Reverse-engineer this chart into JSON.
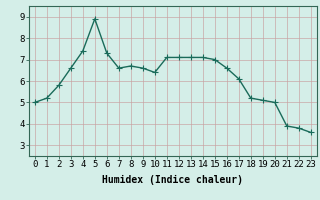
{
  "x": [
    0,
    1,
    2,
    3,
    4,
    5,
    6,
    7,
    8,
    9,
    10,
    11,
    12,
    13,
    14,
    15,
    16,
    17,
    18,
    19,
    20,
    21,
    22,
    23
  ],
  "y": [
    5.0,
    5.2,
    5.8,
    6.6,
    7.4,
    8.9,
    7.3,
    6.6,
    6.7,
    6.6,
    6.4,
    7.1,
    7.1,
    7.1,
    7.1,
    7.0,
    6.6,
    6.1,
    5.2,
    5.1,
    5.0,
    3.9,
    3.8,
    3.6
  ],
  "line_color": "#1a6b5a",
  "marker": "+",
  "marker_size": 4,
  "linewidth": 1.0,
  "bg_color": "#d4eee8",
  "plot_bg_color": "#d4eee8",
  "grid_color": "#c8a0a0",
  "xlabel": "Humidex (Indice chaleur)",
  "xlim": [
    -0.5,
    23.5
  ],
  "ylim": [
    2.5,
    9.5
  ],
  "yticks": [
    3,
    4,
    5,
    6,
    7,
    8,
    9
  ],
  "xticks": [
    0,
    1,
    2,
    3,
    4,
    5,
    6,
    7,
    8,
    9,
    10,
    11,
    12,
    13,
    14,
    15,
    16,
    17,
    18,
    19,
    20,
    21,
    22,
    23
  ],
  "xlabel_fontsize": 7,
  "tick_fontsize": 6.5,
  "spine_color": "#336655"
}
